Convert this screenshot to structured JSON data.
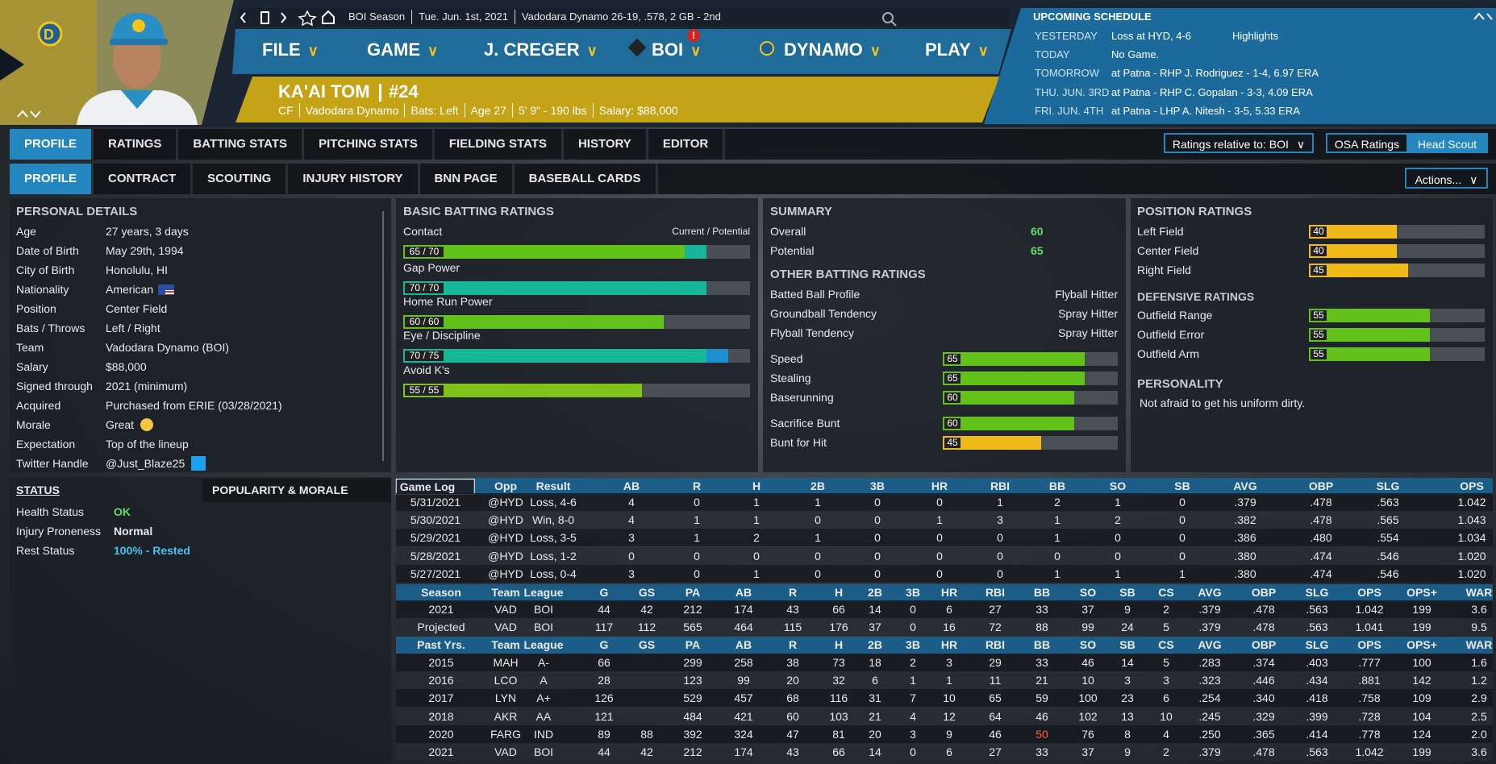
{
  "status_bar": [
    "BOI Season",
    "Tue. Jun. 1st, 2021",
    "Vadodara Dynamo  26-19, .578, 2 GB - 2nd"
  ],
  "menu": [
    "FILE",
    "GAME",
    "J. CREGER",
    "BOI",
    "DYNAMO",
    "PLAY"
  ],
  "menu_alert": "!",
  "player": {
    "name": "KA'AI TOM",
    "number": "#24",
    "info": [
      "CF",
      "Vadodara Dynamo",
      "Bats: Left",
      "Age 27",
      "5' 9\" - 190 lbs",
      "Salary: $88,000"
    ]
  },
  "schedule": {
    "title": "UPCOMING SCHEDULE",
    "rows": [
      [
        "YESTERDAY",
        "Loss at HYD, 4-6",
        "Highlights"
      ],
      [
        "TODAY",
        "No Game."
      ],
      [
        "TOMORROW",
        "at Patna - RHP J. Rodriguez - 1-4, 6.97 ERA"
      ],
      [
        "THU. JUN. 3RD",
        "at Patna - RHP C. Gopalan - 3-3, 4.09 ERA"
      ],
      [
        "FRI. JUN. 4TH",
        "at Patna - LHP A. Nitesh - 3-5, 5.33 ERA"
      ]
    ]
  },
  "tabs": [
    "PROFILE",
    "RATINGS",
    "BATTING STATS",
    "PITCHING STATS",
    "FIELDING STATS",
    "HISTORY",
    "EDITOR"
  ],
  "subtabs": [
    "PROFILE",
    "CONTRACT",
    "SCOUTING",
    "INJURY HISTORY",
    "BNN PAGE",
    "BASEBALL CARDS"
  ],
  "controls": {
    "ratings_relative": "Ratings relative to: BOI",
    "osa": "OSA Ratings",
    "scout": "Head Scout",
    "actions": "Actions..."
  },
  "personal_details": {
    "title": "PERSONAL DETAILS",
    "rows": [
      [
        "Age",
        "27 years, 3 days"
      ],
      [
        "Date of Birth",
        "May 29th, 1994"
      ],
      [
        "City of Birth",
        "Honolulu, HI"
      ],
      [
        "Nationality",
        "American"
      ],
      [
        "Position",
        "Center Field"
      ],
      [
        "Bats / Throws",
        "Left / Right"
      ],
      [
        "Team",
        "Vadodara Dynamo (BOI)"
      ],
      [
        "Salary",
        "$88,000"
      ],
      [
        "Signed through",
        "2021 (minimum)"
      ],
      [
        "Acquired",
        "Purchased from ERIE (03/28/2021)"
      ],
      [
        "Morale",
        "Great"
      ],
      [
        "Expectation",
        "Top of the lineup"
      ],
      [
        "Twitter Handle",
        "@Just_Blaze25"
      ]
    ]
  },
  "rating_scale": {
    "xlim": [
      0,
      80
    ]
  },
  "basic_batting": {
    "title": "BASIC BATTING RATINGS",
    "legend": "Current / Potential",
    "ratings": [
      {
        "name": "Contact",
        "label": "65 / 70",
        "current": 65,
        "potential": 70,
        "color": "#62c21a",
        "potential_color": "#17b89a"
      },
      {
        "name": "Gap Power",
        "label": "70 / 70",
        "current": 70,
        "potential": 70,
        "color": "#17b89a",
        "potential_color": "#17b89a"
      },
      {
        "name": "Home Run Power",
        "label": "60 / 60",
        "current": 60,
        "potential": 60,
        "color": "#62c21a",
        "potential_color": "#62c21a"
      },
      {
        "name": "Eye / Discipline",
        "label": "70 / 75",
        "current": 70,
        "potential": 75,
        "color": "#17b89a",
        "potential_color": "#1e90d0"
      },
      {
        "name": "Avoid K's",
        "label": "55 / 55",
        "current": 55,
        "potential": 55,
        "color": "#7ec21a",
        "potential_color": "#7ec21a"
      }
    ]
  },
  "summary": {
    "title": "SUMMARY",
    "rows": [
      {
        "name": "Overall",
        "value": 60
      },
      {
        "name": "Potential",
        "value": 65
      }
    ],
    "other_title": "OTHER BATTING RATINGS",
    "other": [
      [
        "Batted Ball Profile",
        "Flyball Hitter"
      ],
      [
        "Groundball Tendency",
        "Spray Hitter"
      ],
      [
        "Flyball Tendency",
        "Spray Hitter"
      ]
    ],
    "bars": [
      {
        "name": "Speed",
        "value": 65,
        "color": "#62c21a"
      },
      {
        "name": "Stealing",
        "value": 65,
        "color": "#62c21a"
      },
      {
        "name": "Baserunning",
        "value": 60,
        "color": "#62c21a"
      },
      {
        "name": "Sacrifice Bunt",
        "value": 60,
        "color": "#62c21a"
      },
      {
        "name": "Bunt for Hit",
        "value": 45,
        "color": "#f0bb1a"
      }
    ]
  },
  "position": {
    "title": "POSITION RATINGS",
    "bars": [
      {
        "name": "Left Field",
        "value": 40,
        "color": "#f0bb1a"
      },
      {
        "name": "Center Field",
        "value": 40,
        "color": "#f0bb1a"
      },
      {
        "name": "Right Field",
        "value": 45,
        "color": "#f0bb1a"
      }
    ],
    "defensive_title": "DEFENSIVE RATINGS",
    "defensive": [
      {
        "name": "Outfield Range",
        "value": 55,
        "color": "#62c21a"
      },
      {
        "name": "Outfield Error",
        "value": 55,
        "color": "#62c21a"
      },
      {
        "name": "Outfield Arm",
        "value": 55,
        "color": "#62c21a"
      }
    ],
    "personality_title": "PERSONALITY",
    "personality": "Not afraid to get his uniform dirty."
  },
  "status": {
    "title": "STATUS",
    "tab": "POPULARITY & MORALE",
    "rows": [
      [
        "Health Status",
        "OK"
      ],
      [
        "Injury Proneness",
        "Normal"
      ],
      [
        "Rest Status",
        "100% - Rested"
      ]
    ]
  },
  "game_log": {
    "columns": [
      "Game Log",
      "Opp",
      "Result",
      "AB",
      "R",
      "H",
      "2B",
      "3B",
      "HR",
      "RBI",
      "BB",
      "SO",
      "SB",
      "AVG",
      "OBP",
      "SLG",
      "OPS"
    ],
    "rows": [
      [
        "5/31/2021",
        "@HYD",
        "Loss, 4-6",
        "4",
        "0",
        "1",
        "1",
        "0",
        "0",
        "1",
        "2",
        "1",
        "0",
        ".379",
        ".478",
        ".563",
        "1.042"
      ],
      [
        "5/30/2021",
        "@HYD",
        "Win, 8-0",
        "4",
        "1",
        "1",
        "0",
        "0",
        "1",
        "3",
        "1",
        "2",
        "0",
        ".382",
        ".478",
        ".565",
        "1.043"
      ],
      [
        "5/29/2021",
        "@HYD",
        "Loss, 3-5",
        "3",
        "1",
        "2",
        "1",
        "0",
        "0",
        "0",
        "1",
        "0",
        "0",
        ".386",
        ".480",
        ".554",
        "1.034"
      ],
      [
        "5/28/2021",
        "@HYD",
        "Loss, 1-2",
        "0",
        "0",
        "0",
        "0",
        "0",
        "0",
        "0",
        "0",
        "0",
        "0",
        ".380",
        ".474",
        ".546",
        "1.020"
      ],
      [
        "5/27/2021",
        "@HYD",
        "Loss, 0-4",
        "3",
        "0",
        "1",
        "0",
        "0",
        "0",
        "0",
        "1",
        "1",
        "1",
        ".380",
        ".474",
        ".546",
        "1.020"
      ]
    ]
  },
  "season": {
    "columns": [
      "Season",
      "Team",
      "League",
      "G",
      "GS",
      "PA",
      "AB",
      "R",
      "H",
      "2B",
      "3B",
      "HR",
      "RBI",
      "BB",
      "SO",
      "SB",
      "CS",
      "AVG",
      "OBP",
      "SLG",
      "OPS",
      "OPS+",
      "WAR"
    ],
    "rows": [
      [
        "2021",
        "VAD",
        "BOI",
        "44",
        "42",
        "212",
        "174",
        "43",
        "66",
        "14",
        "0",
        "6",
        "27",
        "33",
        "37",
        "9",
        "2",
        ".379",
        ".478",
        ".563",
        "1.042",
        "199",
        "3.6"
      ],
      [
        "Projected",
        "VAD",
        "BOI",
        "117",
        "112",
        "565",
        "464",
        "115",
        "176",
        "37",
        "0",
        "16",
        "72",
        "88",
        "99",
        "24",
        "5",
        ".379",
        ".478",
        ".563",
        "1.041",
        "199",
        "9.5"
      ]
    ]
  },
  "past": {
    "columns": [
      "Past Yrs.",
      "Team",
      "League",
      "G",
      "GS",
      "PA",
      "AB",
      "R",
      "H",
      "2B",
      "3B",
      "HR",
      "RBI",
      "BB",
      "SO",
      "SB",
      "CS",
      "AVG",
      "OBP",
      "SLG",
      "OPS",
      "OPS+",
      "WAR"
    ],
    "rows": [
      [
        "2015",
        "MAH",
        "A-",
        "66",
        null,
        "299",
        "258",
        "38",
        "73",
        "18",
        "2",
        "3",
        "29",
        "33",
        "46",
        "14",
        "5",
        ".283",
        ".374",
        ".403",
        ".777",
        "100",
        "1.6"
      ],
      [
        "2016",
        "LCO",
        "A",
        "28",
        null,
        "123",
        "99",
        "20",
        "32",
        "6",
        "1",
        "1",
        "11",
        "21",
        "10",
        "3",
        "3",
        ".323",
        ".446",
        ".434",
        ".881",
        "142",
        "1.2"
      ],
      [
        "2017",
        "LYN",
        "A+",
        "126",
        null,
        "529",
        "457",
        "68",
        "116",
        "31",
        "7",
        "10",
        "65",
        "59",
        "100",
        "23",
        "6",
        ".254",
        ".340",
        ".418",
        ".758",
        "109",
        "2.9"
      ],
      [
        "2018",
        "AKR",
        "AA",
        "121",
        null,
        "484",
        "421",
        "60",
        "103",
        "21",
        "4",
        "12",
        "64",
        "46",
        "102",
        "13",
        "10",
        ".245",
        ".329",
        ".399",
        ".728",
        "104",
        "2.5"
      ],
      [
        "2020",
        "FARG",
        "IND",
        "89",
        "88",
        "392",
        "324",
        "47",
        "81",
        "20",
        "3",
        "9",
        "46",
        "50",
        "76",
        "8",
        "4",
        ".250",
        ".365",
        ".414",
        ".778",
        "124",
        "2.0"
      ],
      [
        "2021",
        "VAD",
        "BOI",
        "44",
        "42",
        "212",
        "174",
        "43",
        "66",
        "14",
        "0",
        "6",
        "27",
        "33",
        "37",
        "9",
        "2",
        ".379",
        ".478",
        ".563",
        "1.042",
        "199",
        "3.6"
      ]
    ]
  }
}
